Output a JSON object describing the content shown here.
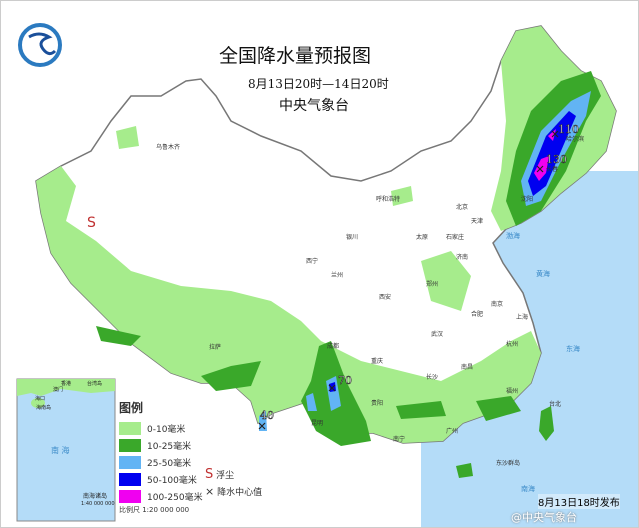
{
  "title": "全国降水量预报图",
  "subtitle": "8月13日20时—14日20时",
  "organization": "中央气象台",
  "issued": "8月13日18时发布",
  "watermark": "@中央气象台",
  "legend": {
    "title": "图例",
    "items": [
      {
        "label": "0-10毫米",
        "color": "#a6ec8c"
      },
      {
        "label": "10-25毫米",
        "color": "#3aa82a"
      },
      {
        "label": "25-50毫米",
        "color": "#62b4f4"
      },
      {
        "label": "50-100毫米",
        "color": "#0000f0"
      },
      {
        "label": "100-250毫米",
        "color": "#f000f0"
      }
    ],
    "dust_symbol": "S",
    "dust_label": "浮尘",
    "center_symbol": "×",
    "center_label": "降水中心值"
  },
  "scale": "比例尺  1:20 000 000",
  "inset": {
    "sea": "南  海",
    "islands": "南海诸岛",
    "scale": "1:40 000 000",
    "labels": [
      "香港",
      "澳门",
      "台湾岛",
      "海口",
      "海南岛"
    ]
  },
  "precip_centers": [
    "110",
    "130",
    "70",
    "40"
  ],
  "seas": [
    "渤海",
    "黄海",
    "东海",
    "南海"
  ],
  "cities": [
    "乌鲁木齐",
    "呼和浩特",
    "北京",
    "天津",
    "石家庄",
    "太原",
    "银川",
    "西宁",
    "兰州",
    "西安",
    "郑州",
    "济南",
    "合肥",
    "南京",
    "上海",
    "武汉",
    "成都",
    "重庆",
    "贵阳",
    "昆明",
    "拉萨",
    "长沙",
    "南昌",
    "杭州",
    "福州",
    "南宁",
    "广州",
    "台北",
    "沈阳",
    "长春",
    "哈尔滨",
    "东沙群岛"
  ]
}
